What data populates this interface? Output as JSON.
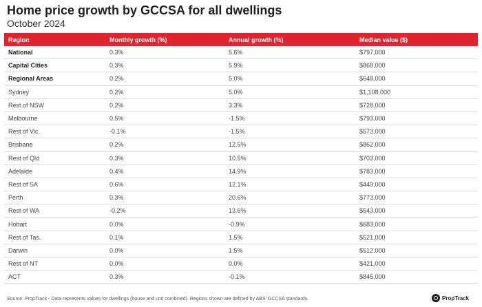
{
  "title": "Home price growth by GCCSA for all dwellings",
  "subtitle": "October 2024",
  "chart_data": {
    "type": "table",
    "columns": [
      "Region",
      "Monthly growth (%)",
      "Annual growth (%)",
      "Median value ($)"
    ],
    "rows": [
      {
        "region": "National",
        "monthly": "0.3%",
        "annual": "5.6%",
        "median": "$797,000",
        "bold": true
      },
      {
        "region": "Capital Cities",
        "monthly": "0.3%",
        "annual": "5.9%",
        "median": "$868,000",
        "bold": true
      },
      {
        "region": "Regional Areas",
        "monthly": "0.2%",
        "annual": "5.0%",
        "median": "$648,000",
        "bold": true
      },
      {
        "region": "Sydney",
        "monthly": "0.2%",
        "annual": "5.0%",
        "median": "$1,108,000",
        "bold": false
      },
      {
        "region": "Rest of NSW",
        "monthly": "0.2%",
        "annual": "3.3%",
        "median": "$728,000",
        "bold": false
      },
      {
        "region": "Melbourne",
        "monthly": "0.5%",
        "annual": "-1.5%",
        "median": "$793,000",
        "bold": false
      },
      {
        "region": "Rest of Vic.",
        "monthly": "-0.1%",
        "annual": "-1.5%",
        "median": "$573,000",
        "bold": false
      },
      {
        "region": "Brisbane",
        "monthly": "0.2%",
        "annual": "12.5%",
        "median": "$862,000",
        "bold": false
      },
      {
        "region": "Rest of Qld",
        "monthly": "0.3%",
        "annual": "10.5%",
        "median": "$703,000",
        "bold": false
      },
      {
        "region": "Adelaide",
        "monthly": "0.4%",
        "annual": "14.9%",
        "median": "$783,000",
        "bold": false
      },
      {
        "region": "Rest of SA",
        "monthly": "0.6%",
        "annual": "12.1%",
        "median": "$449,000",
        "bold": false
      },
      {
        "region": "Perth",
        "monthly": "0.3%",
        "annual": "20.6%",
        "median": "$773,000",
        "bold": false
      },
      {
        "region": "Rest of WA",
        "monthly": "-0.2%",
        "annual": "13.6%",
        "median": "$543,000",
        "bold": false
      },
      {
        "region": "Hobart",
        "monthly": "0.0%",
        "annual": "-0.9%",
        "median": "$683,000",
        "bold": false
      },
      {
        "region": "Rest of Tas.",
        "monthly": "0.1%",
        "annual": "1.5%",
        "median": "$521,000",
        "bold": false
      },
      {
        "region": "Darwin",
        "monthly": "0.0%",
        "annual": "1.5%",
        "median": "$512,000",
        "bold": false
      },
      {
        "region": "Rest of NT",
        "monthly": "0.0%",
        "annual": "0.0%",
        "median": "$421,000",
        "bold": false
      },
      {
        "region": "ACT",
        "monthly": "0.3%",
        "annual": "-0.1%",
        "median": "$845,000",
        "bold": false
      }
    ]
  },
  "footer": "Source: PropTrack - Data represents values for dwellings (house and unit combined). Regions shown are defined by ABS' GCCSA standards.",
  "brand": {
    "name": "PropTrack",
    "icon": "proptrack-logo-icon"
  },
  "colors": {
    "header_bg": "#e0242f",
    "header_text": "#ffffff",
    "row_divider": "#dcdcdc"
  }
}
